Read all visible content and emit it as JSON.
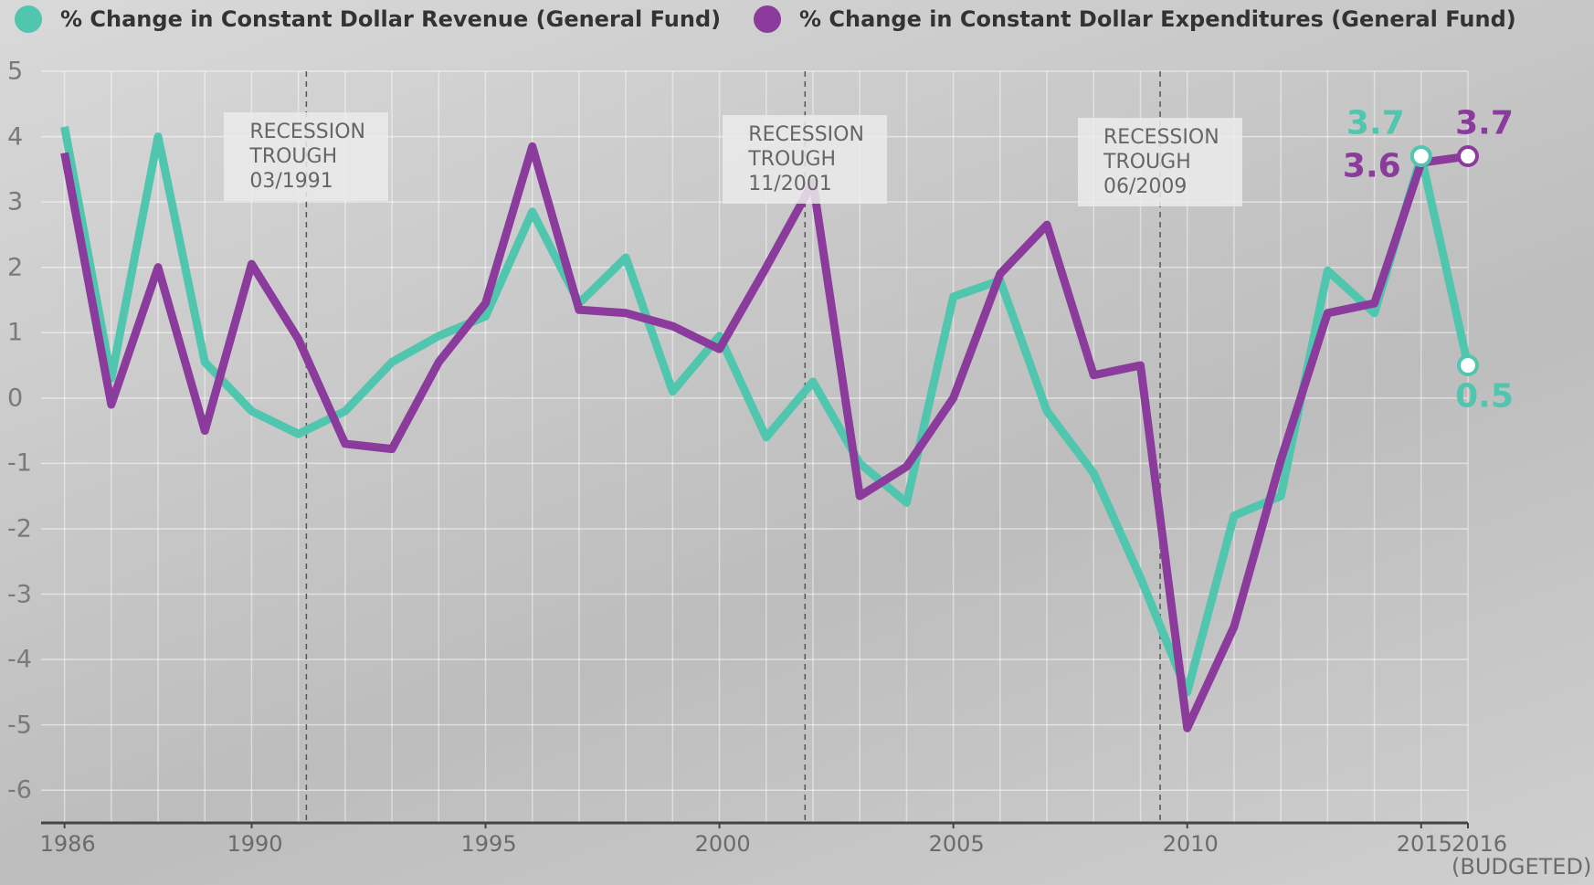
{
  "chart_data": {
    "type": "line",
    "x": [
      1986,
      1987,
      1988,
      1989,
      1990,
      1991,
      1992,
      1993,
      1994,
      1995,
      1996,
      1997,
      1998,
      1999,
      2000,
      2001,
      2002,
      2003,
      2004,
      2005,
      2006,
      2007,
      2008,
      2009,
      2010,
      2011,
      2012,
      2013,
      2014,
      2015,
      2016
    ],
    "series": [
      {
        "name": "% Change in Constant Dollar Revenue (General Fund)",
        "color": "#4fc6ad",
        "values": [
          4.15,
          0.3,
          4.0,
          0.55,
          -0.2,
          -0.55,
          -0.2,
          0.55,
          0.95,
          1.25,
          2.85,
          1.45,
          2.15,
          0.1,
          0.95,
          -0.6,
          0.25,
          -1.0,
          -1.6,
          1.55,
          1.8,
          -0.2,
          -1.15,
          -2.75,
          -4.5,
          -1.8,
          -1.5,
          1.95,
          1.3,
          3.7,
          0.5
        ]
      },
      {
        "name": "% Change in Constant Dollar Expenditures (General Fund)",
        "color": "#8b3b9c",
        "values": [
          3.75,
          -0.1,
          2.0,
          -0.5,
          2.05,
          0.9,
          -0.7,
          -0.78,
          0.55,
          1.45,
          3.85,
          1.35,
          1.3,
          1.1,
          0.75,
          2.0,
          3.3,
          -1.5,
          -1.05,
          0.0,
          1.9,
          2.65,
          0.35,
          0.5,
          -5.05,
          -3.5,
          -0.95,
          1.3,
          1.45,
          3.6,
          3.7
        ]
      }
    ],
    "xlim": [
      1985.5,
      2016
    ],
    "xticks": [
      1986,
      1990,
      1995,
      2000,
      2005,
      2010,
      2015,
      {
        "value": 2016,
        "label": "2016\n(BUDGETED)"
      }
    ],
    "ylim": [
      -6.5,
      5
    ],
    "yticks": [
      -6,
      -5,
      -4,
      -3,
      -2,
      -1,
      0,
      1,
      2,
      3,
      4,
      5
    ],
    "grid": true,
    "annotations": [
      {
        "text": "RECESSION\nTROUGH\n03/1991",
        "x": 1991.17
      },
      {
        "text": "RECESSION\nTROUGH\n11/2001",
        "x": 2001.83
      },
      {
        "text": "RECESSION\nTROUGH\n06/2009",
        "x": 2009.42
      }
    ]
  }
}
